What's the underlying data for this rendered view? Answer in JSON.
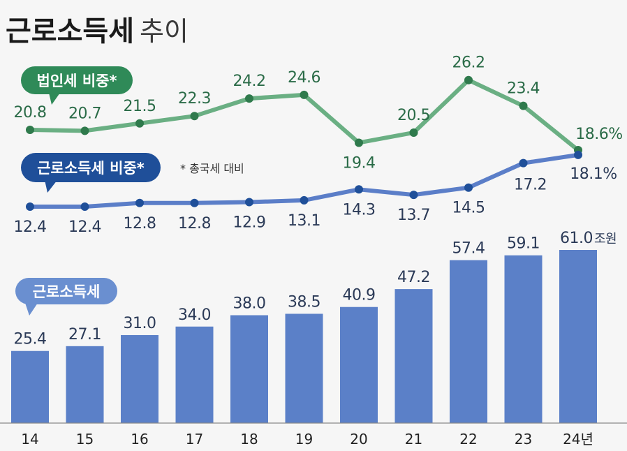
{
  "title": {
    "main": "근로소득세",
    "sub": "추이"
  },
  "note": "* 총국세 대비",
  "colors": {
    "green_line": "#6aaf83",
    "green_pill": "#2f8a58",
    "blue_line": "#5b7ec8",
    "blue_pill": "#1f4f99",
    "bar": "#5b80c8",
    "bar_pill": "#6a8fd0"
  },
  "chart_data": [
    {
      "type": "line",
      "title": "법인세 비중*",
      "categories": [
        "14",
        "15",
        "16",
        "17",
        "18",
        "19",
        "20",
        "21",
        "22",
        "23",
        "24년"
      ],
      "values": [
        20.8,
        20.7,
        21.5,
        22.3,
        24.2,
        24.6,
        19.4,
        20.5,
        26.2,
        23.4,
        18.6
      ],
      "labels": [
        "20.8",
        "20.7",
        "21.5",
        "22.3",
        "24.2",
        "24.6",
        "19.4",
        "20.5",
        "26.2",
        "23.4",
        "18.6%"
      ],
      "color": "#6aaf83"
    },
    {
      "type": "line",
      "title": "근로소득세 비중*",
      "categories": [
        "14",
        "15",
        "16",
        "17",
        "18",
        "19",
        "20",
        "21",
        "22",
        "23",
        "24년"
      ],
      "values": [
        12.4,
        12.4,
        12.8,
        12.8,
        12.9,
        13.1,
        14.3,
        13.7,
        14.5,
        17.2,
        18.1
      ],
      "labels": [
        "12.4",
        "12.4",
        "12.8",
        "12.8",
        "12.9",
        "13.1",
        "14.3",
        "13.7",
        "14.5",
        "17.2",
        "18.1%"
      ],
      "color": "#5b7ec8"
    },
    {
      "type": "bar",
      "title": "근로소득세",
      "categories": [
        "14",
        "15",
        "16",
        "17",
        "18",
        "19",
        "20",
        "21",
        "22",
        "23",
        "24년"
      ],
      "values": [
        25.4,
        27.1,
        31.0,
        34.0,
        38.0,
        38.5,
        40.9,
        47.2,
        57.4,
        59.1,
        61.0
      ],
      "labels": [
        "25.4",
        "27.1",
        "31.0",
        "34.0",
        "38.0",
        "38.5",
        "40.9",
        "47.2",
        "57.4",
        "59.1",
        "61.0"
      ],
      "unit": "조원",
      "color": "#5b80c8"
    }
  ]
}
